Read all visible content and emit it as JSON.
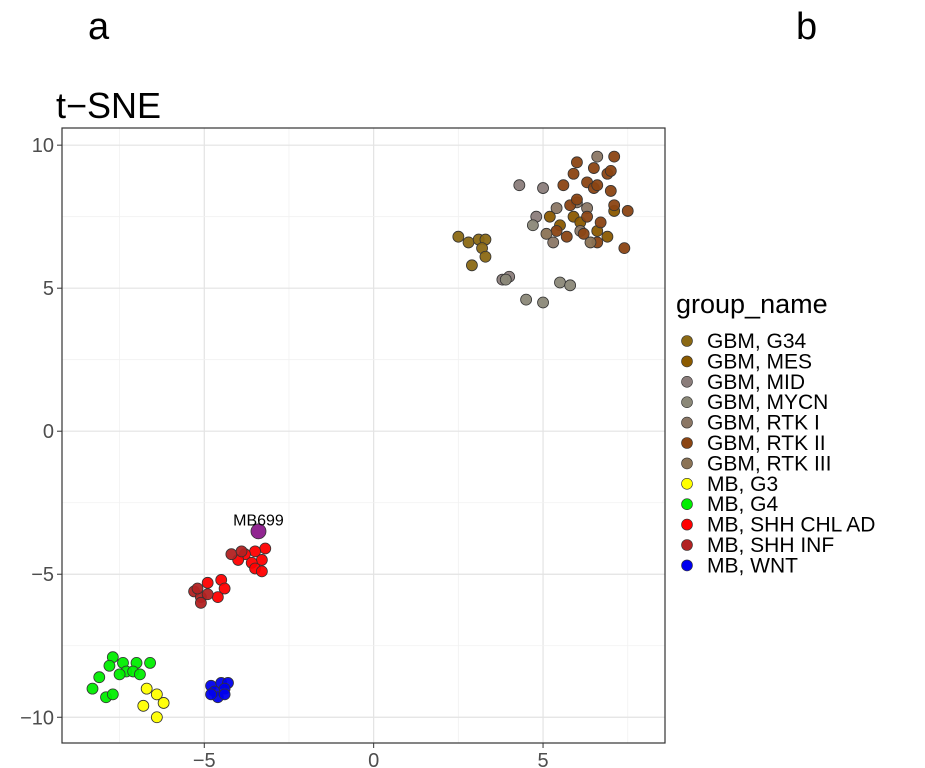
{
  "panels": {
    "a": "a",
    "b": "b"
  },
  "chart_data": {
    "type": "scatter",
    "title": "t−SNE",
    "xlabel": "",
    "ylabel": "",
    "xlim": [
      -9.2,
      8.6
    ],
    "ylim": [
      -10.9,
      10.6
    ],
    "xticks": [
      -5,
      0,
      5
    ],
    "yticks": [
      10,
      5,
      0,
      -5,
      -10
    ],
    "tick_labels_x": [
      "−5",
      "0",
      "5"
    ],
    "tick_labels_y": [
      "10",
      "5",
      "0",
      "−5",
      "−10"
    ],
    "grid": true,
    "legend": {
      "title": "group_name",
      "placement": "right"
    },
    "annotations": [
      {
        "text": "MB699",
        "x": -3.4,
        "y": -3.5
      }
    ],
    "series": [
      {
        "name": "GBM, G34",
        "color": "#8b6914",
        "points": [
          [
            2.5,
            6.8
          ],
          [
            2.8,
            6.6
          ],
          [
            3.1,
            6.7
          ],
          [
            3.3,
            6.7
          ],
          [
            3.2,
            6.4
          ],
          [
            2.9,
            5.8
          ],
          [
            3.3,
            6.1
          ]
        ]
      },
      {
        "name": "GBM, MES",
        "color": "#8b5a00",
        "points": [
          [
            5.2,
            7.5
          ],
          [
            5.5,
            7.2
          ],
          [
            5.9,
            7.5
          ],
          [
            6.1,
            7.3
          ],
          [
            6.6,
            7.0
          ],
          [
            6.9,
            6.8
          ],
          [
            7.1,
            7.7
          ]
        ]
      },
      {
        "name": "GBM, MID",
        "color": "#8b7d7b",
        "points": [
          [
            4.3,
            8.6
          ],
          [
            5.0,
            8.5
          ],
          [
            4.8,
            7.5
          ],
          [
            4.0,
            5.4
          ],
          [
            3.8,
            5.3
          ]
        ]
      },
      {
        "name": "GBM, MYCN",
        "color": "#8b8878",
        "points": [
          [
            4.5,
            4.6
          ],
          [
            5.0,
            4.5
          ],
          [
            5.5,
            5.2
          ],
          [
            5.8,
            5.1
          ],
          [
            4.7,
            7.2
          ],
          [
            3.9,
            5.3
          ]
        ]
      },
      {
        "name": "GBM, RTK I",
        "color": "#8b7765",
        "points": [
          [
            6.3,
            7.8
          ],
          [
            6.6,
            9.6
          ],
          [
            6.0,
            8.0
          ],
          [
            6.1,
            7.0
          ],
          [
            5.4,
            7.8
          ],
          [
            5.3,
            6.6
          ]
        ]
      },
      {
        "name": "GBM, RTK II",
        "color": "#8b4513",
        "points": [
          [
            5.6,
            8.6
          ],
          [
            5.9,
            9.0
          ],
          [
            6.0,
            9.4
          ],
          [
            6.3,
            8.7
          ],
          [
            6.5,
            8.5
          ],
          [
            6.9,
            9.0
          ],
          [
            7.1,
            9.6
          ],
          [
            7.0,
            8.4
          ],
          [
            6.6,
            8.6
          ],
          [
            5.8,
            7.9
          ],
          [
            6.3,
            7.5
          ],
          [
            7.5,
            7.7
          ],
          [
            7.1,
            7.9
          ],
          [
            5.4,
            7.0
          ],
          [
            6.6,
            6.6
          ],
          [
            7.4,
            6.4
          ],
          [
            5.7,
            6.8
          ],
          [
            6.0,
            8.1
          ],
          [
            6.7,
            7.3
          ],
          [
            6.2,
            6.9
          ],
          [
            7.0,
            9.1
          ],
          [
            6.5,
            9.2
          ]
        ]
      },
      {
        "name": "GBM, RTK III",
        "color": "#8b7355",
        "points": [
          [
            5.1,
            6.9
          ],
          [
            6.4,
            6.6
          ]
        ]
      },
      {
        "name": "MB, G3",
        "color": "#ffff00",
        "points": [
          [
            -6.7,
            -9.0
          ],
          [
            -6.4,
            -9.2
          ],
          [
            -6.2,
            -9.5
          ],
          [
            -6.8,
            -9.6
          ],
          [
            -6.4,
            -10.0
          ]
        ]
      },
      {
        "name": "MB, G4",
        "color": "#00ee00",
        "points": [
          [
            -7.7,
            -7.9
          ],
          [
            -7.4,
            -8.1
          ],
          [
            -7.0,
            -8.1
          ],
          [
            -7.8,
            -8.2
          ],
          [
            -7.3,
            -8.4
          ],
          [
            -7.1,
            -8.4
          ],
          [
            -6.9,
            -8.5
          ],
          [
            -6.6,
            -8.1
          ],
          [
            -7.5,
            -8.5
          ],
          [
            -8.1,
            -8.6
          ],
          [
            -8.3,
            -9.0
          ],
          [
            -7.9,
            -9.3
          ],
          [
            -7.7,
            -9.2
          ]
        ]
      },
      {
        "name": "MB, SHH CHL AD",
        "color": "#ff0000",
        "points": [
          [
            -3.2,
            -4.1
          ],
          [
            -3.5,
            -4.2
          ],
          [
            -3.8,
            -4.3
          ],
          [
            -3.3,
            -4.5
          ],
          [
            -3.6,
            -4.6
          ],
          [
            -4.0,
            -4.5
          ],
          [
            -3.5,
            -4.8
          ],
          [
            -3.3,
            -4.9
          ],
          [
            -4.5,
            -5.2
          ],
          [
            -4.9,
            -5.3
          ],
          [
            -4.4,
            -5.5
          ],
          [
            -4.6,
            -5.8
          ]
        ]
      },
      {
        "name": "MB, SHH INF",
        "color": "#b22222",
        "points": [
          [
            -5.3,
            -5.6
          ],
          [
            -5.1,
            -5.8
          ],
          [
            -5.1,
            -6.0
          ],
          [
            -4.9,
            -5.7
          ],
          [
            -5.2,
            -5.5
          ],
          [
            -4.2,
            -4.3
          ],
          [
            -3.9,
            -4.2
          ]
        ]
      },
      {
        "name": "MB, WNT",
        "color": "#0000ee",
        "points": [
          [
            -4.8,
            -8.9
          ],
          [
            -4.5,
            -8.8
          ],
          [
            -4.3,
            -8.8
          ],
          [
            -4.7,
            -9.1
          ],
          [
            -4.4,
            -9.0
          ],
          [
            -4.6,
            -9.3
          ],
          [
            -4.8,
            -9.2
          ],
          [
            -4.4,
            -9.2
          ]
        ]
      },
      {
        "name": "",
        "color": "#8b1a8b",
        "highlight": true,
        "points": [
          [
            -3.4,
            -3.5
          ]
        ]
      }
    ]
  }
}
